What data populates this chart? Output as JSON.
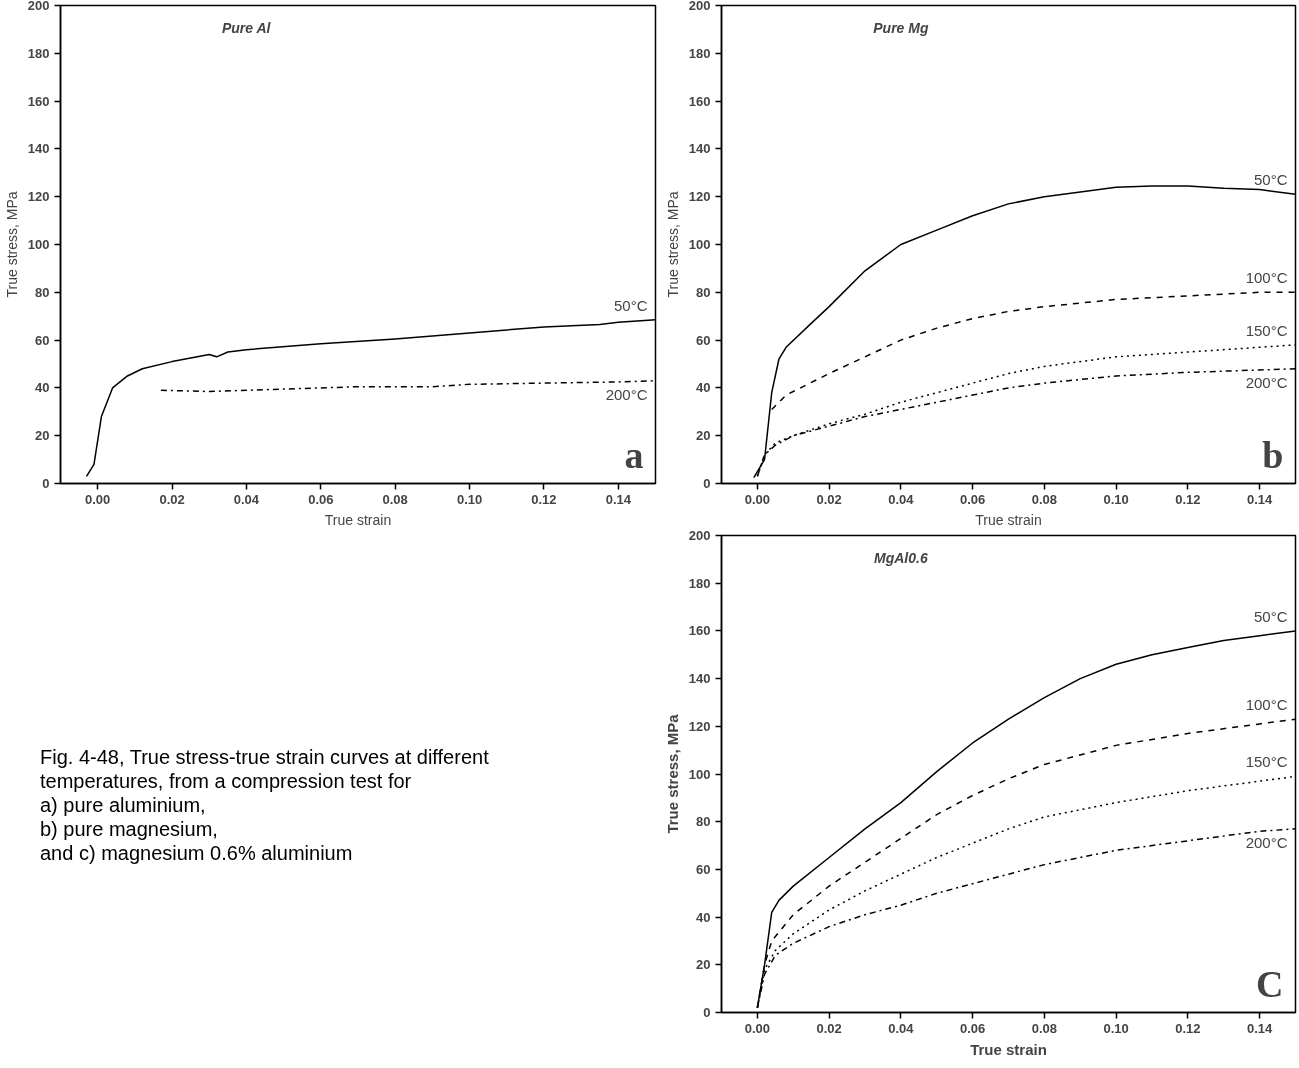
{
  "chart_data": [
    {
      "type": "line",
      "title": "Pure Al",
      "xlabel": "True strain",
      "ylabel": "True stress, MPa",
      "xlim": [
        -0.01,
        0.15
      ],
      "ylim": [
        0,
        200
      ],
      "xticks": [
        {
          "value": 0,
          "label": "0.00"
        },
        {
          "value": 0.02,
          "label": "0.02"
        },
        {
          "value": 0.04,
          "label": "0.04"
        },
        {
          "value": 0.06,
          "label": "0.06"
        },
        {
          "value": 0.08,
          "label": "0.08"
        },
        {
          "value": 0.1,
          "label": "0.10"
        },
        {
          "value": 0.12,
          "label": "0.12"
        },
        {
          "value": 0.14,
          "label": "0.14"
        }
      ],
      "yticks": [
        0,
        20,
        40,
        60,
        80,
        100,
        120,
        140,
        160,
        180,
        200
      ],
      "grid": false,
      "legend": false,
      "annotations": [
        "a",
        "Fig. 4-48, True stress-true strain curves at different temperatures, from a compression test for\na) pure aluminium,\nb) pure magnesium,\nand c) magnesium 0.6% aluminium"
      ],
      "series": [
        {
          "name": "50°C",
          "color": "#000000",
          "line_style": "solid",
          "x": [
            -0.003,
            -0.001,
            0.001,
            0.004,
            0.008,
            0.012,
            0.02,
            0.03,
            0.032,
            0.035,
            0.04,
            0.06,
            0.08,
            0.1,
            0.12,
            0.135,
            0.14,
            0.15
          ],
          "values": [
            3,
            8,
            28,
            40,
            45,
            48,
            51,
            54,
            53,
            55,
            56,
            58.5,
            60.5,
            63,
            65.5,
            66.5,
            67.5,
            68.5
          ]
        },
        {
          "name": "200°C",
          "color": "#000000",
          "line_style": "dashdot",
          "x": [
            0.017,
            0.03,
            0.05,
            0.07,
            0.09,
            0.1,
            0.12,
            0.14,
            0.15
          ],
          "values": [
            39,
            38.5,
            39.5,
            40.5,
            40.5,
            41.5,
            42,
            42.5,
            43
          ]
        }
      ]
    },
    {
      "type": "line",
      "title": "Pure Mg",
      "xlabel": "True strain",
      "ylabel": "True stress, MPa",
      "xlim": [
        -0.01,
        0.15
      ],
      "ylim": [
        0,
        200
      ],
      "xticks": [
        {
          "value": 0,
          "label": "0.00"
        },
        {
          "value": 0.02,
          "label": "0.02"
        },
        {
          "value": 0.04,
          "label": "0.04"
        },
        {
          "value": 0.06,
          "label": "0.06"
        },
        {
          "value": 0.08,
          "label": "0.08"
        },
        {
          "value": 0.1,
          "label": "0.10"
        },
        {
          "value": 0.12,
          "label": "0.12"
        },
        {
          "value": 0.14,
          "label": "0.14"
        }
      ],
      "yticks": [
        0,
        20,
        40,
        60,
        80,
        100,
        120,
        140,
        160,
        180,
        200
      ],
      "grid": false,
      "legend": false,
      "annotations": [
        "b"
      ],
      "series": [
        {
          "name": "50°C",
          "color": "#000000",
          "line_style": "solid",
          "x": [
            -0.001,
            0.002,
            0.004,
            0.006,
            0.008,
            0.015,
            0.02,
            0.03,
            0.04,
            0.05,
            0.06,
            0.07,
            0.08,
            0.09,
            0.1,
            0.11,
            0.12,
            0.13,
            0.14,
            0.15
          ],
          "values": [
            2.5,
            10,
            38,
            52,
            57,
            67,
            74,
            89,
            100,
            106,
            112,
            117,
            120,
            122,
            124,
            124.5,
            124.5,
            123.5,
            123,
            121
          ]
        },
        {
          "name": "100°C",
          "color": "#000000",
          "line_style": "dashed",
          "x": [
            0.004,
            0.008,
            0.02,
            0.03,
            0.04,
            0.05,
            0.06,
            0.07,
            0.08,
            0.1,
            0.12,
            0.14,
            0.15
          ],
          "values": [
            31,
            37,
            46,
            53,
            60,
            65,
            69,
            72,
            74,
            77,
            78.5,
            80,
            80
          ]
        },
        {
          "name": "150°C",
          "color": "#000000",
          "line_style": "dotted",
          "x": [
            0,
            0.002,
            0.005,
            0.01,
            0.02,
            0.03,
            0.04,
            0.05,
            0.06,
            0.07,
            0.08,
            0.1,
            0.12,
            0.14,
            0.15
          ],
          "values": [
            3,
            12,
            17,
            20,
            25,
            29,
            34,
            38,
            42,
            46,
            49,
            53,
            55,
            57,
            58
          ]
        },
        {
          "name": "200°C",
          "color": "#000000",
          "line_style": "dashdot",
          "x": [
            0,
            0.002,
            0.005,
            0.01,
            0.02,
            0.03,
            0.04,
            0.05,
            0.06,
            0.07,
            0.08,
            0.1,
            0.12,
            0.14,
            0.15
          ],
          "values": [
            3,
            12,
            16,
            20,
            24,
            28,
            31,
            34,
            37,
            40,
            42,
            45,
            46.5,
            47.5,
            48
          ]
        }
      ]
    },
    {
      "type": "line",
      "title": "MgAl0.6",
      "xlabel": "True strain",
      "ylabel": "True stress, MPa",
      "xlim": [
        -0.01,
        0.15
      ],
      "ylim": [
        0,
        200
      ],
      "xticks": [
        {
          "value": 0,
          "label": "0.00"
        },
        {
          "value": 0.02,
          "label": "0.02"
        },
        {
          "value": 0.04,
          "label": "0.04"
        },
        {
          "value": 0.06,
          "label": "0.06"
        },
        {
          "value": 0.08,
          "label": "0.08"
        },
        {
          "value": 0.1,
          "label": "0.10"
        },
        {
          "value": 0.12,
          "label": "0.12"
        },
        {
          "value": 0.14,
          "label": "0.14"
        }
      ],
      "yticks": [
        0,
        20,
        40,
        60,
        80,
        100,
        120,
        140,
        160,
        180,
        200
      ],
      "grid": false,
      "legend": false,
      "annotations": [
        "C"
      ],
      "series": [
        {
          "name": "50°C",
          "color": "#000000",
          "line_style": "solid",
          "x": [
            0,
            0.002,
            0.004,
            0.006,
            0.01,
            0.02,
            0.03,
            0.04,
            0.05,
            0.06,
            0.07,
            0.08,
            0.09,
            0.1,
            0.11,
            0.12,
            0.13,
            0.14,
            0.15
          ],
          "values": [
            2,
            20,
            42,
            47,
            53,
            65,
            77,
            88,
            101,
            113,
            123,
            132,
            140,
            146,
            150,
            153,
            156,
            158,
            160
          ]
        },
        {
          "name": "100°C",
          "color": "#000000",
          "line_style": "dashed",
          "x": [
            0,
            0.002,
            0.004,
            0.01,
            0.02,
            0.03,
            0.04,
            0.05,
            0.06,
            0.07,
            0.08,
            0.09,
            0.1,
            0.12,
            0.14,
            0.15
          ],
          "values": [
            2,
            20,
            30,
            41,
            53,
            63,
            73,
            83,
            91,
            98,
            104,
            108,
            112,
            117,
            121,
            123
          ]
        },
        {
          "name": "150°C",
          "color": "#000000",
          "line_style": "dotted",
          "x": [
            0,
            0.002,
            0.005,
            0.01,
            0.02,
            0.03,
            0.04,
            0.05,
            0.06,
            0.07,
            0.08,
            0.1,
            0.12,
            0.14,
            0.15
          ],
          "values": [
            2,
            18,
            26,
            33,
            43,
            51,
            58,
            65,
            71,
            77,
            82,
            88,
            93,
            97,
            99
          ]
        },
        {
          "name": "200°C",
          "color": "#000000",
          "line_style": "dashdot",
          "x": [
            0,
            0.002,
            0.005,
            0.01,
            0.02,
            0.03,
            0.04,
            0.05,
            0.06,
            0.07,
            0.08,
            0.1,
            0.12,
            0.14,
            0.15
          ],
          "values": [
            2,
            16,
            24,
            29,
            36,
            41,
            45,
            50,
            54,
            58,
            62,
            68,
            72,
            76,
            77
          ]
        }
      ]
    }
  ]
}
